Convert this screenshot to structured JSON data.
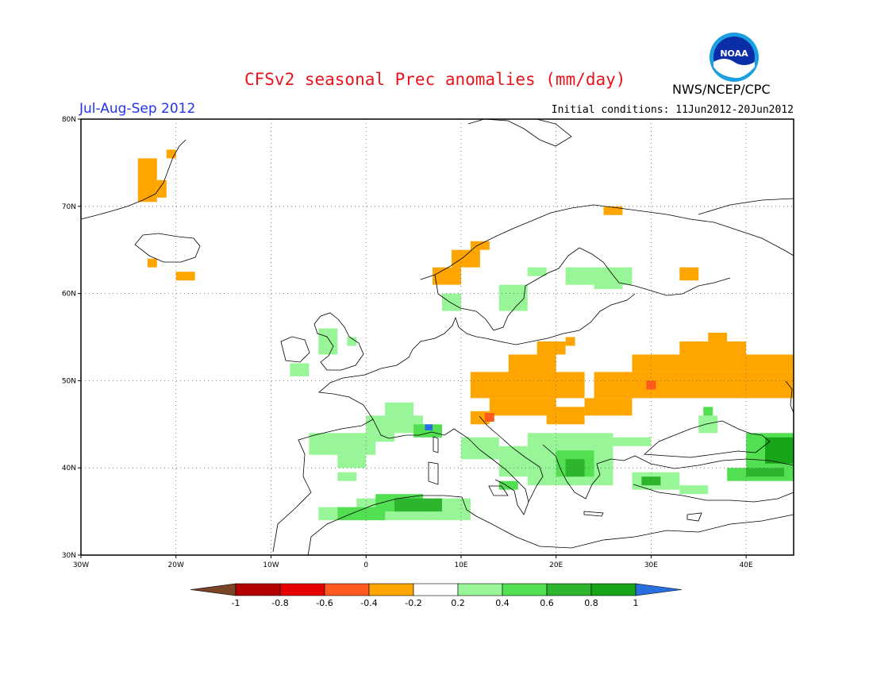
{
  "title": "CFSv2 seasonal Prec anomalies (mm/day)",
  "period": "Jul-Aug-Sep 2012",
  "initial_conditions": "Initial conditions: 11Jun2012-20Jun2012",
  "agency": "NWS/NCEP/CPC",
  "logo_text": "NOAA",
  "map": {
    "lon_range": [
      -30,
      45
    ],
    "lat_range": [
      30,
      80
    ],
    "lon_ticks": [
      "30W",
      "20W",
      "10W",
      "0",
      "10E",
      "20E",
      "30E",
      "40E"
    ],
    "lat_ticks": [
      "30N",
      "40N",
      "50N",
      "60N",
      "70N",
      "80N"
    ],
    "grid": "dotted"
  },
  "colorbar": {
    "labels": [
      "-1",
      "-0.8",
      "-0.6",
      "-0.4",
      "-0.2",
      "0.2",
      "0.4",
      "0.6",
      "0.8",
      "1"
    ],
    "colors": {
      "lt_-1": "#7a4527",
      "-1_-0.8": "#b30000",
      "-0.8_-0.6": "#e60000",
      "-0.6_-0.4": "#ff5a1e",
      "-0.4_-0.2": "#ffa500",
      "-0.2_0.2": "#ffffff",
      "0.2_0.4": "#98f598",
      "0.4_0.6": "#52e052",
      "0.6_0.8": "#2db52d",
      "0.8_1": "#18a418",
      "gt_1": "#2a6fe0"
    }
  }
}
